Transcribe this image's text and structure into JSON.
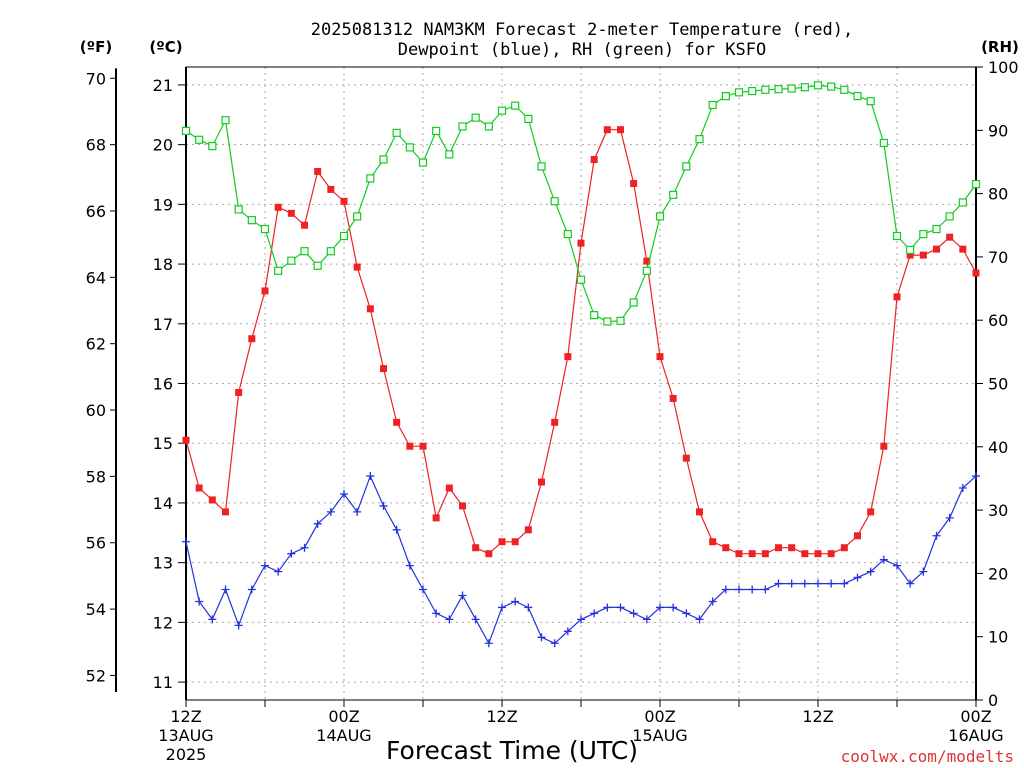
{
  "chart_data": {
    "type": "line",
    "title_line1": "2025081312 NAM3KM Forecast 2-meter Temperature (red),",
    "title_line2": "Dewpoint (blue), RH (green) for KSFO",
    "xlabel": "Forecast Time (UTC)",
    "credit": "coolwx.com/modelts",
    "left_outer_axis": {
      "unit_label": "(ºF)",
      "ylim": [
        51.5,
        70.3
      ],
      "ticks": [
        52,
        54,
        56,
        58,
        60,
        62,
        64,
        66,
        68,
        70
      ]
    },
    "left_inner_axis": {
      "unit_label": "(ºC)",
      "ylim": [
        10.7,
        21.3
      ],
      "ticks": [
        11,
        12,
        13,
        14,
        15,
        16,
        17,
        18,
        19,
        20,
        21
      ]
    },
    "right_axis": {
      "unit_label": "(RH)",
      "ylim": [
        0,
        100
      ],
      "ticks": [
        0,
        10,
        20,
        30,
        40,
        50,
        60,
        70,
        80,
        90,
        100
      ]
    },
    "x_axis": {
      "range_hours": [
        0,
        60
      ],
      "ticks": [
        {
          "hour": 0,
          "label": "12Z",
          "date": "13AUG",
          "year": "2025"
        },
        {
          "hour": 12,
          "label": "00Z",
          "date": "14AUG",
          "year": ""
        },
        {
          "hour": 24,
          "label": "12Z",
          "date": "",
          "year": ""
        },
        {
          "hour": 36,
          "label": "00Z",
          "date": "15AUG",
          "year": ""
        },
        {
          "hour": 48,
          "label": "12Z",
          "date": "",
          "year": ""
        },
        {
          "hour": 60,
          "label": "00Z",
          "date": "16AUG",
          "year": ""
        }
      ]
    },
    "grid": true,
    "x_hours": [
      0,
      1,
      2,
      3,
      4,
      5,
      6,
      7,
      8,
      9,
      10,
      11,
      12,
      13,
      14,
      15,
      16,
      17,
      18,
      19,
      20,
      21,
      22,
      23,
      24,
      25,
      26,
      27,
      28,
      29,
      30,
      31,
      32,
      33,
      34,
      35,
      36,
      37,
      38,
      39,
      40,
      41,
      42,
      43,
      44,
      45,
      46,
      47,
      48,
      49,
      50,
      51,
      52,
      53,
      54,
      55,
      56,
      57,
      58,
      59,
      60
    ],
    "series": [
      {
        "name": "Temperature",
        "unit": "°C",
        "color": "#ee2222",
        "marker": "filled-square",
        "values": [
          15.05,
          14.25,
          14.05,
          13.85,
          15.85,
          16.75,
          17.55,
          18.95,
          18.85,
          18.65,
          19.55,
          19.25,
          19.05,
          17.95,
          17.25,
          16.25,
          15.35,
          14.95,
          14.95,
          13.75,
          14.25,
          13.95,
          13.25,
          13.15,
          13.35,
          13.35,
          13.55,
          14.35,
          15.35,
          16.45,
          18.35,
          19.75,
          20.25,
          20.25,
          19.35,
          18.05,
          16.45,
          15.75,
          14.75,
          13.85,
          13.35,
          13.25,
          13.15,
          13.15,
          13.15,
          13.25,
          13.25,
          13.15,
          13.15,
          13.15,
          13.25,
          13.45,
          13.85,
          14.95,
          17.45,
          18.15,
          18.15,
          18.25,
          18.45,
          18.25,
          17.85
        ]
      },
      {
        "name": "Dewpoint",
        "unit": "°C",
        "color": "#2233dd",
        "marker": "plus",
        "values": [
          13.35,
          12.35,
          12.05,
          12.55,
          11.95,
          12.55,
          12.95,
          12.85,
          13.15,
          13.25,
          13.65,
          13.85,
          14.15,
          13.85,
          14.45,
          13.95,
          13.55,
          12.95,
          12.55,
          12.15,
          12.05,
          12.45,
          12.05,
          11.65,
          12.25,
          12.35,
          12.25,
          11.75,
          11.65,
          11.85,
          12.05,
          12.15,
          12.25,
          12.25,
          12.15,
          12.05,
          12.25,
          12.25,
          12.15,
          12.05,
          12.35,
          12.55,
          12.55,
          12.55,
          12.55,
          12.65,
          12.65,
          12.65,
          12.65,
          12.65,
          12.65,
          12.75,
          12.85,
          13.05,
          12.95,
          12.65,
          12.85,
          13.45,
          13.75,
          14.25,
          14.45
        ]
      },
      {
        "name": "RH",
        "unit": "%",
        "color": "#11cc22",
        "marker": "open-square",
        "values": [
          89.9,
          88.5,
          87.5,
          91.6,
          77.5,
          75.8,
          74.4,
          67.8,
          69.4,
          70.9,
          68.6,
          70.9,
          73.3,
          76.4,
          82.4,
          85.4,
          89.6,
          87.3,
          84.9,
          89.9,
          86.2,
          90.6,
          92.0,
          90.6,
          93.1,
          93.9,
          91.8,
          84.3,
          78.8,
          73.6,
          66.4,
          60.8,
          59.8,
          59.9,
          62.8,
          67.8,
          76.4,
          79.8,
          84.3,
          88.6,
          94.0,
          95.4,
          96.0,
          96.2,
          96.4,
          96.5,
          96.6,
          96.8,
          97.1,
          96.9,
          96.4,
          95.4,
          94.6,
          88.0,
          73.3,
          71.1,
          73.6,
          74.4,
          76.4,
          78.6,
          81.5
        ]
      }
    ]
  }
}
